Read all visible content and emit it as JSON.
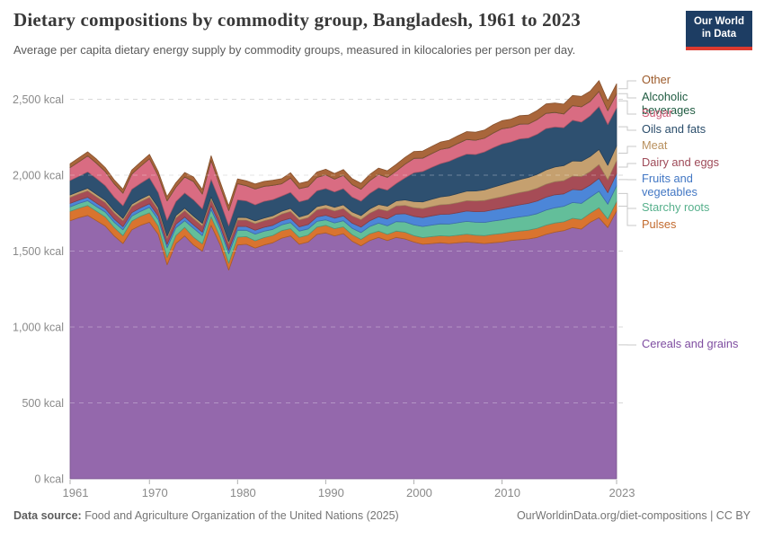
{
  "header": {
    "title": "Dietary compositions by commodity group, Bangladesh, 1961 to 2023",
    "subtitle": "Average per capita dietary energy supply by commodity groups, measured in kilocalories per person per day."
  },
  "logo": {
    "line1": "Our World",
    "line2": "in Data"
  },
  "footer": {
    "source_label": "Data source:",
    "source_text": " Food and Agriculture Organization of the United Nations (2025)",
    "right_text": "OurWorldinData.org/diet-compositions | CC BY"
  },
  "axes": {
    "y_ticks": [
      {
        "value": 0,
        "label": "0 kcal"
      },
      {
        "value": 500,
        "label": "500 kcal"
      },
      {
        "value": 1000,
        "label": "1,000 kcal"
      },
      {
        "value": 1500,
        "label": "1,500 kcal"
      },
      {
        "value": 2000,
        "label": "2,000 kcal"
      },
      {
        "value": 2500,
        "label": "2,500 kcal"
      }
    ],
    "x_ticks": [
      {
        "year": 1961,
        "label": "1961"
      },
      {
        "year": 1970,
        "label": "1970"
      },
      {
        "year": 1980,
        "label": "1980"
      },
      {
        "year": 1990,
        "label": "1990"
      },
      {
        "year": 2000,
        "label": "2000"
      },
      {
        "year": 2010,
        "label": "2010"
      },
      {
        "year": 2023,
        "label": "2023"
      }
    ]
  },
  "legend": {
    "items": [
      {
        "key": "other",
        "label": "Other",
        "y": 90,
        "color": "#9c5a2a"
      },
      {
        "key": "alcohol",
        "label": "Alcoholic beverages",
        "y": 109,
        "color": "#1f5b41"
      },
      {
        "key": "sugar",
        "label": "Sugar",
        "y": 127,
        "color": "#ce5a74"
      },
      {
        "key": "oils",
        "label": "Oils and fats",
        "y": 145,
        "color": "#2a4d6b"
      },
      {
        "key": "meat",
        "label": "Meat",
        "y": 163,
        "color": "#b8905e"
      },
      {
        "key": "dairy",
        "label": "Dairy and eggs",
        "y": 182,
        "color": "#9e4a58"
      },
      {
        "key": "fruits",
        "label": "Fruits and vegetables",
        "y": 200,
        "color": "#4277c4"
      },
      {
        "key": "starchy",
        "label": "Starchy roots",
        "y": 232,
        "color": "#57b08c"
      },
      {
        "key": "pulses",
        "label": "Pulses",
        "y": 251,
        "color": "#c26a2e"
      },
      {
        "key": "cereals",
        "label": "Cereals and grains",
        "y": 384,
        "color": "#7e4ca0"
      }
    ]
  },
  "chart_data": {
    "type": "area",
    "stacked": true,
    "title": "Dietary compositions by commodity group, Bangladesh, 1961 to 2023",
    "ylabel": "kilocalories per person per day",
    "ylim": [
      0,
      2630
    ],
    "grid": true,
    "legend_position": "right",
    "years": [
      1961,
      1962,
      1963,
      1964,
      1965,
      1966,
      1967,
      1968,
      1969,
      1970,
      1971,
      1972,
      1973,
      1974,
      1975,
      1976,
      1977,
      1978,
      1979,
      1980,
      1981,
      1982,
      1983,
      1984,
      1985,
      1986,
      1987,
      1988,
      1989,
      1990,
      1991,
      1992,
      1993,
      1994,
      1995,
      1996,
      1997,
      1998,
      1999,
      2000,
      2001,
      2002,
      2003,
      2004,
      2005,
      2006,
      2007,
      2008,
      2009,
      2010,
      2011,
      2012,
      2013,
      2014,
      2015,
      2016,
      2017,
      2018,
      2019,
      2020,
      2021,
      2022,
      2023
    ],
    "series": [
      {
        "key": "cereals",
        "name": "Cereals and grains",
        "color": "#9468ac",
        "values": [
          1700,
          1720,
          1735,
          1700,
          1665,
          1600,
          1550,
          1640,
          1670,
          1690,
          1610,
          1410,
          1550,
          1600,
          1540,
          1500,
          1670,
          1545,
          1375,
          1540,
          1545,
          1520,
          1540,
          1555,
          1585,
          1600,
          1545,
          1560,
          1610,
          1620,
          1600,
          1615,
          1565,
          1535,
          1570,
          1590,
          1570,
          1590,
          1580,
          1560,
          1545,
          1550,
          1555,
          1550,
          1555,
          1560,
          1555,
          1550,
          1555,
          1560,
          1570,
          1575,
          1580,
          1590,
          1610,
          1625,
          1635,
          1655,
          1645,
          1690,
          1720,
          1655,
          1765
        ]
      },
      {
        "key": "pulses",
        "name": "Pulses",
        "color": "#d9742f",
        "values": [
          62,
          63,
          65,
          62,
          60,
          56,
          52,
          58,
          60,
          62,
          55,
          48,
          52,
          56,
          52,
          48,
          56,
          50,
          45,
          52,
          50,
          48,
          49,
          48,
          50,
          48,
          45,
          46,
          48,
          50,
          48,
          45,
          43,
          42,
          44,
          42,
          40,
          42,
          44,
          42,
          44,
          45,
          46,
          48,
          50,
          52,
          50,
          52,
          55,
          56,
          55,
          57,
          58,
          60,
          61,
          60,
          58,
          61,
          63,
          60,
          66,
          56,
          62
        ]
      },
      {
        "key": "starchy",
        "name": "Starchy roots",
        "color": "#63be9a",
        "values": [
          30,
          31,
          32,
          31,
          32,
          34,
          38,
          33,
          32,
          36,
          42,
          64,
          52,
          44,
          58,
          54,
          48,
          52,
          62,
          46,
          42,
          44,
          42,
          40,
          38,
          40,
          42,
          40,
          38,
          36,
          38,
          40,
          42,
          45,
          48,
          52,
          56,
          62,
          68,
          70,
          73,
          76,
          78,
          80,
          82,
          84,
          85,
          87,
          88,
          90,
          91,
          93,
          95,
          97,
          99,
          100,
          102,
          104,
          106,
          105,
          108,
          98,
          104
        ]
      },
      {
        "key": "fruits",
        "name": "Fruits and vegetables",
        "color": "#4c86d8",
        "values": [
          22,
          22,
          23,
          23,
          22,
          22,
          21,
          22,
          23,
          24,
          23,
          22,
          23,
          24,
          23,
          23,
          24,
          24,
          24,
          25,
          25,
          26,
          26,
          27,
          27,
          28,
          28,
          29,
          29,
          30,
          31,
          32,
          34,
          36,
          38,
          42,
          46,
          50,
          54,
          57,
          59,
          61,
          63,
          65,
          66,
          68,
          70,
          72,
          74,
          76,
          78,
          80,
          81,
          83,
          85,
          86,
          82,
          86,
          88,
          80,
          86,
          76,
          80
        ]
      },
      {
        "key": "dairy",
        "name": "Dairy and eggs",
        "color": "#a64c56",
        "values": [
          40,
          41,
          42,
          41,
          40,
          40,
          39,
          40,
          41,
          42,
          41,
          40,
          41,
          42,
          41,
          41,
          42,
          41,
          41,
          42,
          42,
          43,
          43,
          44,
          44,
          45,
          45,
          46,
          46,
          47,
          47,
          48,
          48,
          49,
          50,
          51,
          52,
          53,
          55,
          57,
          59,
          61,
          63,
          65,
          66,
          68,
          70,
          72,
          74,
          76,
          78,
          80,
          82,
          84,
          85,
          86,
          87,
          88,
          89,
          88,
          90,
          84,
          85
        ]
      },
      {
        "key": "meat",
        "name": "Meat",
        "color": "#c5a06f",
        "values": [
          16,
          16,
          17,
          17,
          16,
          16,
          15,
          16,
          17,
          17,
          16,
          15,
          16,
          17,
          16,
          16,
          17,
          16,
          16,
          17,
          17,
          18,
          18,
          19,
          19,
          20,
          20,
          21,
          22,
          23,
          24,
          25,
          26,
          27,
          28,
          30,
          32,
          34,
          36,
          40,
          44,
          48,
          52,
          56,
          60,
          63,
          66,
          70,
          75,
          80,
          83,
          86,
          89,
          92,
          95,
          97,
          99,
          100,
          101,
          100,
          100,
          96,
          98
        ]
      },
      {
        "key": "oils",
        "name": "Oils and fats",
        "color": "#2e5070",
        "values": [
          95,
          100,
          108,
          104,
          96,
          88,
          84,
          98,
          104,
          112,
          98,
          104,
          92,
          100,
          108,
          96,
          116,
          102,
          104,
          116,
          110,
          106,
          110,
          106,
          100,
          106,
          100,
          98,
          104,
          106,
          102,
          106,
          98,
          95,
          102,
          110,
          106,
          114,
          145,
          190,
          200,
          210,
          218,
          228,
          238,
          244,
          240,
          250,
          260,
          268,
          264,
          268,
          260,
          264,
          272,
          264,
          250,
          268,
          258,
          268,
          282,
          268,
          250
        ]
      },
      {
        "key": "sugar",
        "name": "Sugar",
        "color": "#d96c82",
        "values": [
          85,
          95,
          105,
          100,
          92,
          88,
          82,
          100,
          112,
          125,
          110,
          128,
          95,
          105,
          120,
          98,
          124,
          100,
          100,
          106,
          100,
          104,
          98,
          94,
          80,
          94,
          86,
          84,
          88,
          90,
          84,
          88,
          82,
          78,
          84,
          88,
          84,
          82,
          90,
          94,
          88,
          90,
          94,
          88,
          92,
          96,
          94,
          90,
          96,
          100,
          95,
          97,
          92,
          96,
          100,
          95,
          90,
          96,
          100,
          95,
          100,
          92,
          92
        ]
      },
      {
        "key": "alcohol",
        "name": "Alcoholic beverages",
        "color": "#2e6e4e",
        "values": [
          1,
          1,
          1,
          1,
          1,
          1,
          1,
          1,
          1,
          1,
          1,
          1,
          1,
          1,
          1,
          1,
          1,
          1,
          1,
          1,
          1,
          1,
          1,
          1,
          1,
          1,
          1,
          1,
          1,
          1,
          1,
          1,
          1,
          1,
          1,
          1,
          1,
          1,
          1,
          1,
          1,
          1,
          1,
          1,
          1,
          1,
          1,
          1,
          1,
          1,
          1,
          1,
          1,
          1,
          1,
          1,
          1,
          1,
          1,
          1,
          1,
          1,
          1
        ]
      },
      {
        "key": "other",
        "name": "Other",
        "color": "#a9663b",
        "values": [
          25,
          26,
          26,
          27,
          26,
          25,
          25,
          26,
          27,
          28,
          27,
          28,
          28,
          29,
          29,
          29,
          30,
          30,
          30,
          31,
          31,
          32,
          32,
          33,
          33,
          34,
          34,
          35,
          35,
          36,
          36,
          37,
          38,
          39,
          40,
          41,
          42,
          43,
          44,
          45,
          46,
          47,
          48,
          49,
          50,
          51,
          52,
          53,
          54,
          52,
          54,
          55,
          57,
          59,
          61,
          62,
          64,
          66,
          68,
          66,
          70,
          64,
          65
        ]
      }
    ]
  }
}
